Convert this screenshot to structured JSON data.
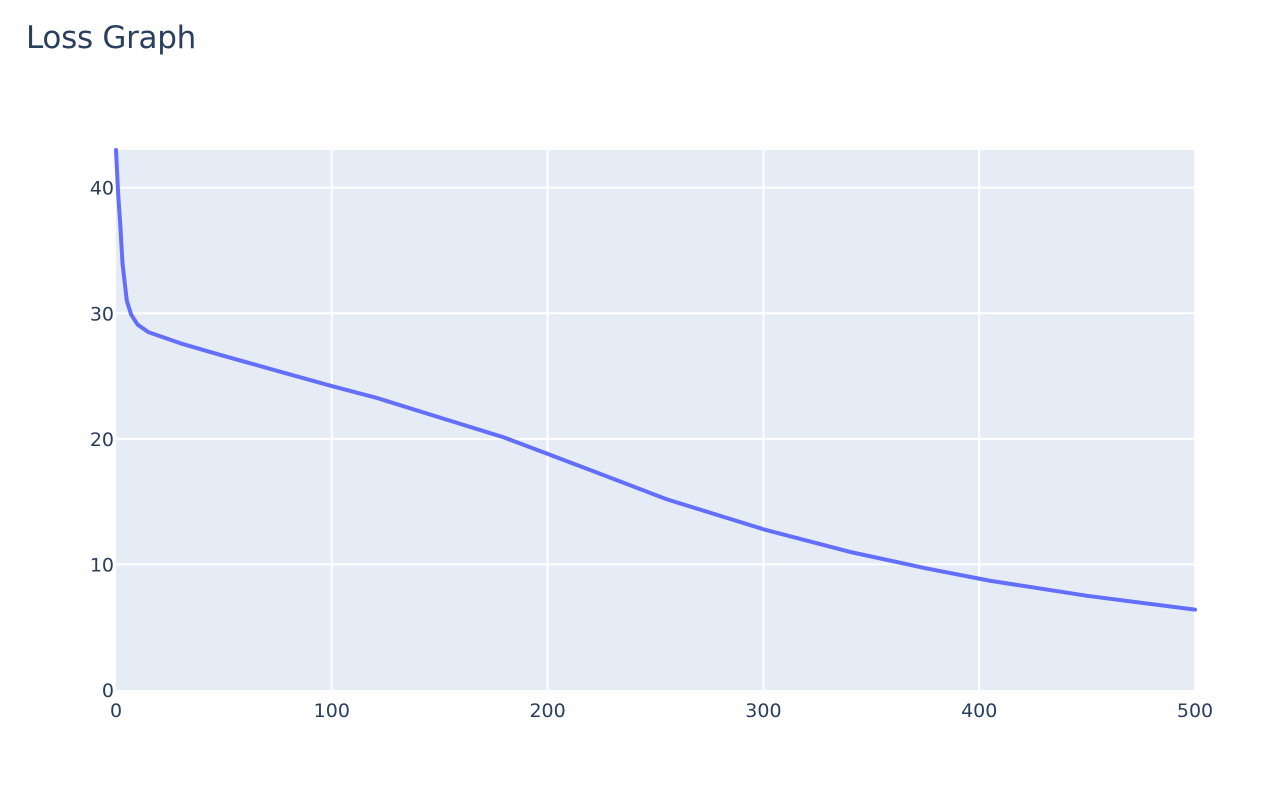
{
  "chart_data": {
    "type": "line",
    "title": "Loss Graph",
    "xlabel": "",
    "ylabel": "",
    "xlim": [
      0,
      500
    ],
    "ylim": [
      0,
      43
    ],
    "x_ticks": [
      0,
      100,
      200,
      300,
      400,
      500
    ],
    "y_ticks": [
      0,
      10,
      20,
      30,
      40
    ],
    "grid": true,
    "legend": "none",
    "plot_background": "#e5ecf6",
    "grid_color": "#ffffff",
    "line_color": "#636efa",
    "series": [
      {
        "x": [
          0,
          1,
          2,
          3,
          5,
          7,
          10,
          15,
          20,
          30,
          50,
          75,
          100,
          120,
          150,
          180,
          200,
          220,
          255,
          300,
          340,
          375,
          405,
          450,
          500
        ],
        "y": [
          43,
          39.5,
          37,
          34,
          31,
          29.9,
          29.1,
          28.5,
          28.2,
          27.6,
          26.6,
          25.4,
          24.2,
          23.3,
          21.7,
          20.1,
          18.8,
          17.5,
          15.2,
          12.8,
          11.0,
          9.7,
          8.7,
          7.5,
          6.4
        ]
      }
    ]
  }
}
